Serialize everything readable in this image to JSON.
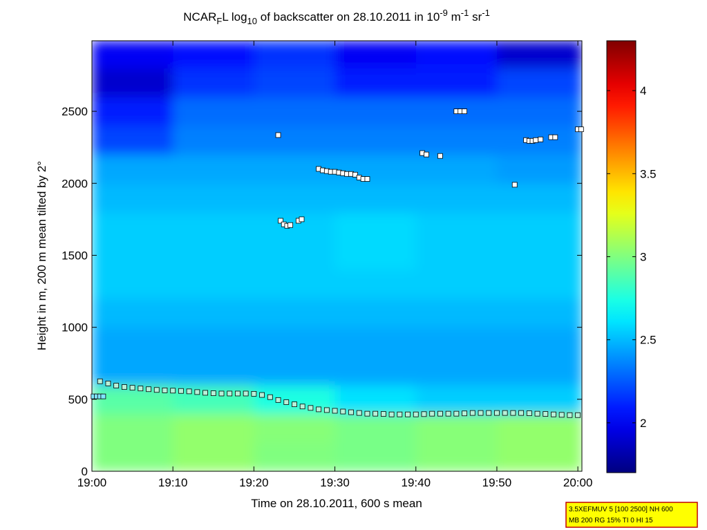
{
  "chart_data": {
    "type": "heatmap",
    "title_parts": [
      {
        "text": "NCAR"
      },
      {
        "text": "F",
        "sub": true
      },
      {
        "text": "L log"
      },
      {
        "text": "10",
        "sub": true
      },
      {
        "text": " of backscatter on 28.10.2011 in 10"
      },
      {
        "text": "-9",
        "sup": true
      },
      {
        "text": " m"
      },
      {
        "text": "-1",
        "sup": true
      },
      {
        "text": " sr"
      },
      {
        "text": "-1",
        "sup": true
      }
    ],
    "xlabel": "Time on 28.10.2011, 600 s mean",
    "ylabel": "Height in m, 200 m mean tilted by 2°",
    "xlim": [
      0,
      60.5
    ],
    "xticks": [
      {
        "value": 0,
        "label": "19:00"
      },
      {
        "value": 10,
        "label": "19:10"
      },
      {
        "value": 20,
        "label": "19:20"
      },
      {
        "value": 30,
        "label": "19:30"
      },
      {
        "value": 40,
        "label": "19:40"
      },
      {
        "value": 50,
        "label": "19:50"
      },
      {
        "value": 60,
        "label": "20:00"
      }
    ],
    "ylim": [
      0,
      2990
    ],
    "yticks": [
      0,
      500,
      1000,
      1500,
      2000,
      2500
    ],
    "colormap": "jet",
    "clim": [
      1.7,
      4.3
    ],
    "cticks": [
      2,
      2.5,
      3,
      3.5,
      4
    ],
    "x_edges": [
      0,
      10,
      20,
      30,
      40,
      50,
      60.5
    ],
    "y_edges": [
      0,
      200,
      400,
      600,
      800,
      1000,
      1200,
      1400,
      1600,
      1800,
      2000,
      2200,
      2400,
      2600,
      2800,
      2990
    ],
    "z": [
      [
        3.0,
        3.05,
        3.0,
        2.98,
        3.02,
        3.05
      ],
      [
        3.0,
        3.05,
        3.02,
        2.98,
        3.02,
        3.05
      ],
      [
        2.9,
        2.85,
        2.75,
        2.6,
        2.55,
        2.55
      ],
      [
        2.45,
        2.45,
        2.45,
        2.45,
        2.45,
        2.45
      ],
      [
        2.45,
        2.45,
        2.45,
        2.45,
        2.45,
        2.45
      ],
      [
        2.5,
        2.5,
        2.5,
        2.5,
        2.5,
        2.5
      ],
      [
        2.55,
        2.55,
        2.55,
        2.55,
        2.55,
        2.55
      ],
      [
        2.55,
        2.55,
        2.55,
        2.58,
        2.55,
        2.55
      ],
      [
        2.55,
        2.55,
        2.55,
        2.58,
        2.55,
        2.55
      ],
      [
        2.5,
        2.5,
        2.5,
        2.5,
        2.5,
        2.5
      ],
      [
        2.45,
        2.45,
        2.45,
        2.45,
        2.45,
        2.42
      ],
      [
        2.2,
        2.35,
        2.35,
        2.35,
        2.35,
        2.35
      ],
      [
        2.1,
        2.3,
        2.3,
        2.3,
        2.3,
        2.3
      ],
      [
        1.9,
        2.15,
        2.2,
        2.1,
        2.1,
        2.2
      ],
      [
        2.0,
        2.05,
        2.15,
        2.0,
        2.05,
        1.9
      ]
    ],
    "series": [
      {
        "color": "#7fe6ff",
        "x": [
          0.2,
          0.6,
          1.0,
          1.4
        ],
        "values": [
          520,
          520,
          520,
          520
        ]
      },
      {
        "color": "#b8f0d8",
        "x": [
          1,
          2,
          3,
          4,
          5,
          6,
          7,
          8,
          9,
          10,
          11,
          12,
          13,
          14,
          15,
          16,
          17,
          18,
          19,
          20,
          21,
          22,
          23,
          24,
          25,
          26,
          27,
          28,
          29,
          30,
          31,
          32,
          33,
          34,
          35,
          36,
          37,
          38,
          39,
          40,
          41,
          42,
          43,
          44,
          45,
          46,
          47,
          48,
          49,
          50,
          51,
          52,
          53,
          54,
          55,
          56,
          57,
          58,
          59,
          60
        ],
        "values": [
          625,
          610,
          595,
          585,
          580,
          575,
          570,
          565,
          562,
          560,
          558,
          555,
          550,
          545,
          542,
          540,
          540,
          540,
          540,
          538,
          530,
          515,
          495,
          480,
          465,
          450,
          440,
          430,
          425,
          420,
          415,
          410,
          405,
          400,
          400,
          398,
          395,
          395,
          395,
          395,
          397,
          400,
          400,
          400,
          400,
          402,
          405,
          405,
          405,
          405,
          405,
          405,
          405,
          403,
          400,
          398,
          395,
          392,
          390,
          390
        ]
      },
      {
        "color": "#ffffff",
        "x": [
          23,
          23.3,
          23.7,
          24.1,
          24.5,
          25.5,
          25.9,
          28,
          28.5,
          29,
          29.5,
          30,
          30.5,
          31,
          31.5,
          32,
          32.5,
          33,
          33.5,
          34,
          40.8,
          41.3,
          43,
          45,
          45.5,
          46,
          52.2,
          53.6,
          54,
          54.4,
          54.8,
          55.4,
          56.7,
          57.2,
          60,
          60.4
        ],
        "values": [
          2335,
          1740,
          1715,
          1705,
          1710,
          1740,
          1750,
          2100,
          2090,
          2085,
          2080,
          2080,
          2075,
          2070,
          2065,
          2065,
          2060,
          2040,
          2030,
          2030,
          2210,
          2200,
          2190,
          2500,
          2500,
          2500,
          1990,
          2300,
          2295,
          2295,
          2300,
          2305,
          2320,
          2320,
          2375,
          2375
        ]
      }
    ],
    "annotation_lines": [
      "3.5XEFMUV 5 [100 2500] NH 600",
      "MB 200 RG 15% TI 0 HI 15"
    ]
  }
}
